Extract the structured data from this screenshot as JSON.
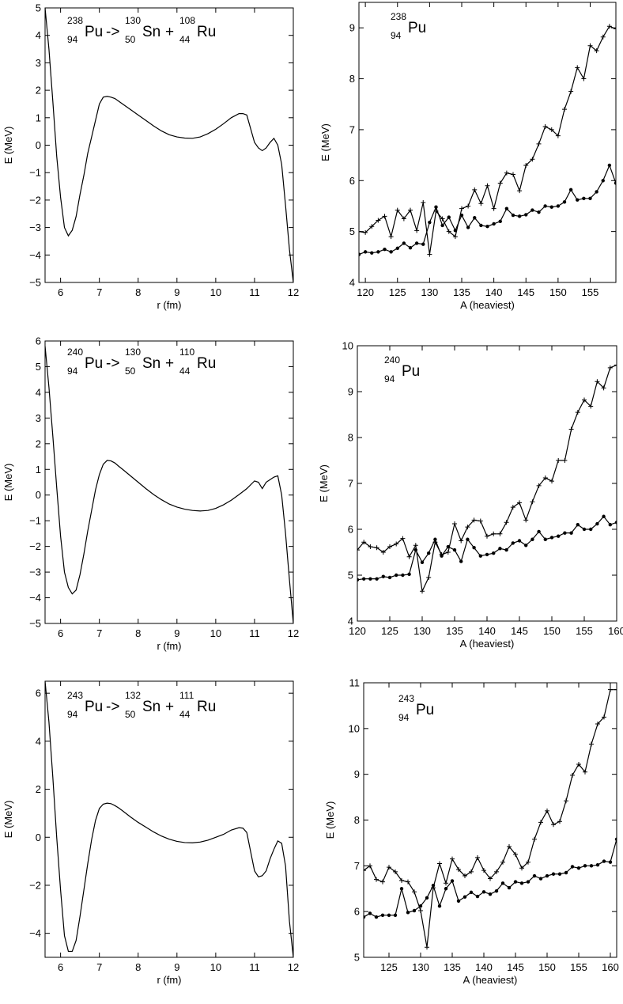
{
  "chart_data": [
    {
      "type": "line",
      "annotation": {
        "parent": {
          "a": "238",
          "z": "94",
          "sym": "Pu"
        },
        "arrow": "->",
        "frag1": {
          "a": "130",
          "z": "50",
          "sym": "Sn"
        },
        "plus": "+",
        "frag2": {
          "a": "108",
          "z": "44",
          "sym": "Ru"
        }
      },
      "xlabel": "r (fm)",
      "ylabel": "E (MeV)",
      "xlim": [
        5.6,
        12
      ],
      "ylim": [
        -5,
        5
      ],
      "xticks": [
        6,
        7,
        8,
        9,
        10,
        11,
        12
      ],
      "yticks": [
        -5,
        -4,
        -3,
        -2,
        -1,
        0,
        1,
        2,
        3,
        4,
        5
      ],
      "grid": false,
      "series": [
        {
          "x": [
            5.6,
            5.7,
            5.8,
            5.9,
            6.0,
            6.1,
            6.2,
            6.3,
            6.4,
            6.5,
            6.6,
            6.7,
            6.8,
            6.9,
            7.0,
            7.1,
            7.2,
            7.3,
            7.4,
            7.5,
            7.6,
            7.8,
            8.0,
            8.2,
            8.4,
            8.6,
            8.8,
            9.0,
            9.2,
            9.4,
            9.6,
            9.8,
            10.0,
            10.2,
            10.4,
            10.6,
            10.7,
            10.8,
            10.9,
            11.0,
            11.1,
            11.2,
            11.3,
            11.4,
            11.5,
            11.6,
            11.7,
            11.8,
            11.9,
            12.0
          ],
          "y": [
            5.0,
            3.5,
            1.6,
            -0.4,
            -1.9,
            -3.0,
            -3.3,
            -3.1,
            -2.6,
            -1.8,
            -1.1,
            -0.3,
            0.3,
            0.9,
            1.5,
            1.75,
            1.78,
            1.75,
            1.7,
            1.6,
            1.5,
            1.3,
            1.1,
            0.9,
            0.7,
            0.52,
            0.38,
            0.3,
            0.26,
            0.25,
            0.3,
            0.42,
            0.58,
            0.78,
            1.0,
            1.15,
            1.15,
            1.1,
            0.6,
            0.1,
            -0.1,
            -0.2,
            -0.1,
            0.1,
            0.25,
            0.0,
            -0.7,
            -2.2,
            -3.8,
            -5.0
          ],
          "markers": false
        }
      ]
    },
    {
      "type": "line",
      "annotation": {
        "parent": {
          "a": "238",
          "z": "94",
          "sym": "Pu"
        }
      },
      "xlabel": "A (heaviest)",
      "ylabel": "E (MeV)",
      "xlim": [
        119,
        159
      ],
      "ylim": [
        4,
        9.5
      ],
      "xticks": [
        120,
        125,
        130,
        135,
        140,
        145,
        150,
        155
      ],
      "yticks": [
        4,
        5,
        6,
        7,
        8,
        9
      ],
      "grid": false,
      "series": [
        {
          "marker": "plus",
          "x": [
            119,
            120,
            121,
            122,
            123,
            124,
            125,
            126,
            127,
            128,
            129,
            130,
            131,
            132,
            133,
            134,
            135,
            136,
            137,
            138,
            139,
            140,
            141,
            142,
            143,
            144,
            145,
            146,
            147,
            148,
            149,
            150,
            151,
            152,
            153,
            154,
            155,
            156,
            157,
            158,
            159
          ],
          "y": [
            5.0,
            4.98,
            5.1,
            5.22,
            5.3,
            4.9,
            5.42,
            5.25,
            5.42,
            5.02,
            5.57,
            4.55,
            5.4,
            5.25,
            5.0,
            4.9,
            5.45,
            5.5,
            5.82,
            5.55,
            5.9,
            5.45,
            5.95,
            6.15,
            6.12,
            5.8,
            6.3,
            6.42,
            6.72,
            7.06,
            7.0,
            6.88,
            7.4,
            7.75,
            8.22,
            8.0,
            8.65,
            8.55,
            8.82,
            9.03,
            8.98
          ]
        },
        {
          "marker": "dot",
          "x": [
            119,
            120,
            121,
            122,
            123,
            124,
            125,
            126,
            127,
            128,
            129,
            130,
            131,
            132,
            133,
            134,
            135,
            136,
            137,
            138,
            139,
            140,
            141,
            142,
            143,
            144,
            145,
            146,
            147,
            148,
            149,
            150,
            151,
            152,
            153,
            154,
            155,
            156,
            157,
            158,
            159
          ],
          "y": [
            4.55,
            4.6,
            4.58,
            4.6,
            4.65,
            4.6,
            4.67,
            4.77,
            4.68,
            4.77,
            4.75,
            5.18,
            5.48,
            5.12,
            5.28,
            5.02,
            5.32,
            5.08,
            5.27,
            5.12,
            5.1,
            5.15,
            5.2,
            5.45,
            5.32,
            5.3,
            5.33,
            5.42,
            5.38,
            5.5,
            5.48,
            5.5,
            5.58,
            5.82,
            5.62,
            5.65,
            5.65,
            5.78,
            6.0,
            6.3,
            5.95
          ]
        }
      ]
    },
    {
      "type": "line",
      "annotation": {
        "parent": {
          "a": "240",
          "z": "94",
          "sym": "Pu"
        },
        "arrow": "->",
        "frag1": {
          "a": "130",
          "z": "50",
          "sym": "Sn"
        },
        "plus": "+",
        "frag2": {
          "a": "110",
          "z": "44",
          "sym": "Ru"
        }
      },
      "xlabel": "r (fm)",
      "ylabel": "E (MeV)",
      "xlim": [
        5.6,
        12
      ],
      "ylim": [
        -5,
        6
      ],
      "xticks": [
        6,
        7,
        8,
        9,
        10,
        11,
        12
      ],
      "yticks": [
        -5,
        -4,
        -3,
        -2,
        -1,
        0,
        1,
        2,
        3,
        4,
        5,
        6
      ],
      "grid": false,
      "series": [
        {
          "x": [
            5.6,
            5.7,
            5.8,
            5.9,
            6.0,
            6.1,
            6.2,
            6.3,
            6.4,
            6.5,
            6.6,
            6.7,
            6.8,
            6.9,
            7.0,
            7.1,
            7.2,
            7.3,
            7.4,
            7.5,
            7.6,
            7.8,
            8.0,
            8.2,
            8.4,
            8.6,
            8.8,
            9.0,
            9.2,
            9.4,
            9.6,
            9.8,
            10.0,
            10.2,
            10.4,
            10.6,
            10.8,
            11.0,
            11.1,
            11.2,
            11.3,
            11.4,
            11.5,
            11.6,
            11.7,
            11.8,
            11.9,
            12.0
          ],
          "y": [
            5.8,
            4.2,
            2.3,
            0.3,
            -1.6,
            -3.0,
            -3.6,
            -3.85,
            -3.7,
            -3.1,
            -2.3,
            -1.4,
            -0.6,
            0.2,
            0.8,
            1.2,
            1.35,
            1.33,
            1.25,
            1.12,
            1.0,
            0.75,
            0.5,
            0.25,
            0.02,
            -0.18,
            -0.35,
            -0.47,
            -0.55,
            -0.6,
            -0.62,
            -0.6,
            -0.52,
            -0.38,
            -0.2,
            0.02,
            0.25,
            0.55,
            0.5,
            0.25,
            0.5,
            0.6,
            0.7,
            0.75,
            0.0,
            -1.5,
            -3.3,
            -5.0
          ],
          "markers": false
        }
      ]
    },
    {
      "type": "line",
      "annotation": {
        "parent": {
          "a": "240",
          "z": "94",
          "sym": "Pu"
        }
      },
      "xlabel": "A (heaviest)",
      "ylabel": "E (MeV)",
      "xlim": [
        120,
        160
      ],
      "ylim": [
        4,
        10
      ],
      "xticks": [
        120,
        125,
        130,
        135,
        140,
        145,
        150,
        155,
        160
      ],
      "yticks": [
        4,
        5,
        6,
        7,
        8,
        9,
        10
      ],
      "grid": false,
      "series": [
        {
          "marker": "plus",
          "x": [
            120,
            121,
            122,
            123,
            124,
            125,
            126,
            127,
            128,
            129,
            130,
            131,
            132,
            133,
            134,
            135,
            136,
            137,
            138,
            139,
            140,
            141,
            142,
            143,
            144,
            145,
            146,
            147,
            148,
            149,
            150,
            151,
            152,
            153,
            154,
            155,
            156,
            157,
            158,
            159,
            160
          ],
          "y": [
            5.55,
            5.72,
            5.62,
            5.6,
            5.5,
            5.62,
            5.68,
            5.8,
            5.4,
            5.65,
            4.65,
            4.95,
            5.72,
            5.45,
            5.5,
            6.12,
            5.75,
            6.05,
            6.2,
            6.18,
            5.85,
            5.9,
            5.9,
            6.15,
            6.48,
            6.58,
            6.2,
            6.6,
            6.95,
            7.12,
            7.05,
            7.5,
            7.5,
            8.18,
            8.55,
            8.82,
            8.68,
            9.22,
            9.08,
            9.52,
            9.58
          ]
        },
        {
          "marker": "dot",
          "x": [
            120,
            121,
            122,
            123,
            124,
            125,
            126,
            127,
            128,
            129,
            130,
            131,
            132,
            133,
            134,
            135,
            136,
            137,
            138,
            139,
            140,
            141,
            142,
            143,
            144,
            145,
            146,
            147,
            148,
            149,
            150,
            151,
            152,
            153,
            154,
            155,
            156,
            157,
            158,
            159,
            160
          ],
          "y": [
            4.9,
            4.92,
            4.92,
            4.92,
            4.97,
            4.95,
            5.0,
            5.0,
            5.02,
            5.55,
            5.28,
            5.48,
            5.78,
            5.42,
            5.62,
            5.55,
            5.3,
            5.78,
            5.6,
            5.42,
            5.45,
            5.48,
            5.58,
            5.55,
            5.7,
            5.75,
            5.65,
            5.78,
            5.95,
            5.78,
            5.82,
            5.85,
            5.92,
            5.92,
            6.1,
            6.0,
            6.0,
            6.12,
            6.28,
            6.1,
            6.15
          ]
        }
      ]
    },
    {
      "type": "line",
      "annotation": {
        "parent": {
          "a": "243",
          "z": "94",
          "sym": "Pu"
        },
        "arrow": "->",
        "frag1": {
          "a": "132",
          "z": "50",
          "sym": "Sn"
        },
        "plus": "+",
        "frag2": {
          "a": "111",
          "z": "44",
          "sym": "Ru"
        }
      },
      "xlabel": "r (fm)",
      "ylabel": "E (MeV)",
      "xlim": [
        5.6,
        12
      ],
      "ylim": [
        -5,
        6.5
      ],
      "xticks": [
        6,
        7,
        8,
        9,
        10,
        11,
        12
      ],
      "yticks": [
        -4,
        -2,
        0,
        2,
        4,
        6
      ],
      "grid": false,
      "series": [
        {
          "x": [
            5.6,
            5.7,
            5.8,
            5.9,
            6.0,
            6.1,
            6.2,
            6.3,
            6.4,
            6.5,
            6.6,
            6.7,
            6.8,
            6.9,
            7.0,
            7.1,
            7.2,
            7.3,
            7.4,
            7.5,
            7.6,
            7.8,
            8.0,
            8.2,
            8.4,
            8.6,
            8.8,
            9.0,
            9.2,
            9.4,
            9.6,
            9.8,
            10.0,
            10.2,
            10.4,
            10.6,
            10.7,
            10.8,
            10.9,
            11.0,
            11.1,
            11.2,
            11.3,
            11.4,
            11.5,
            11.6,
            11.7,
            11.8,
            11.9,
            12.0
          ],
          "y": [
            6.5,
            4.8,
            2.5,
            0.0,
            -2.2,
            -4.1,
            -4.75,
            -4.75,
            -4.3,
            -3.3,
            -2.2,
            -1.1,
            -0.1,
            0.7,
            1.2,
            1.38,
            1.42,
            1.4,
            1.32,
            1.22,
            1.1,
            0.85,
            0.62,
            0.42,
            0.22,
            0.05,
            -0.08,
            -0.17,
            -0.22,
            -0.23,
            -0.2,
            -0.12,
            0.0,
            0.12,
            0.3,
            0.4,
            0.38,
            0.2,
            -0.6,
            -1.4,
            -1.65,
            -1.6,
            -1.4,
            -0.9,
            -0.5,
            -0.15,
            -0.25,
            -1.2,
            -3.5,
            -5.0
          ],
          "markers": false
        }
      ]
    },
    {
      "type": "line",
      "annotation": {
        "parent": {
          "a": "243",
          "z": "94",
          "sym": "Pu"
        }
      },
      "xlabel": "A (heaviest)",
      "ylabel": "E (MeV)",
      "xlim": [
        121,
        161
      ],
      "ylim": [
        5,
        11
      ],
      "xticks": [
        125,
        130,
        135,
        140,
        145,
        150,
        155,
        160
      ],
      "yticks": [
        5,
        6,
        7,
        8,
        9,
        10,
        11
      ],
      "grid": false,
      "series": [
        {
          "marker": "plus",
          "x": [
            121,
            122,
            123,
            124,
            125,
            126,
            127,
            128,
            129,
            130,
            131,
            132,
            133,
            134,
            135,
            136,
            137,
            138,
            139,
            140,
            141,
            142,
            143,
            144,
            145,
            146,
            147,
            148,
            149,
            150,
            151,
            152,
            153,
            154,
            155,
            156,
            157,
            158,
            159,
            160,
            161
          ],
          "y": [
            6.9,
            7.0,
            6.7,
            6.65,
            6.97,
            6.87,
            6.68,
            6.65,
            6.43,
            6.02,
            5.22,
            6.52,
            7.05,
            6.62,
            7.15,
            6.92,
            6.78,
            6.87,
            7.18,
            6.9,
            6.72,
            6.87,
            7.08,
            7.42,
            7.25,
            6.95,
            7.08,
            7.58,
            7.95,
            8.2,
            7.9,
            7.97,
            8.42,
            8.98,
            9.22,
            9.05,
            9.66,
            10.1,
            10.25,
            10.85,
            10.85
          ]
        },
        {
          "marker": "dot",
          "x": [
            121,
            122,
            123,
            124,
            125,
            126,
            127,
            128,
            129,
            130,
            131,
            132,
            133,
            134,
            135,
            136,
            137,
            138,
            139,
            140,
            141,
            142,
            143,
            144,
            145,
            146,
            147,
            148,
            149,
            150,
            151,
            152,
            153,
            154,
            155,
            156,
            157,
            158,
            159,
            160,
            161
          ],
          "y": [
            5.88,
            5.96,
            5.88,
            5.92,
            5.92,
            5.92,
            6.5,
            5.98,
            6.02,
            6.12,
            6.3,
            6.57,
            6.12,
            6.5,
            6.67,
            6.23,
            6.32,
            6.42,
            6.33,
            6.43,
            6.38,
            6.45,
            6.62,
            6.52,
            6.65,
            6.62,
            6.65,
            6.78,
            6.72,
            6.78,
            6.82,
            6.82,
            6.85,
            6.98,
            6.95,
            7.0,
            7.0,
            7.02,
            7.1,
            7.08,
            7.58
          ]
        }
      ]
    }
  ]
}
